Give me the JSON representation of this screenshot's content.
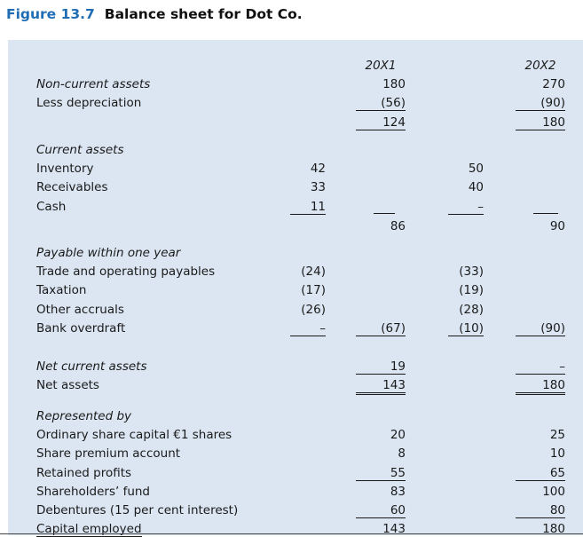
{
  "figure": {
    "number": "Figure 13.7",
    "caption": "Balance sheet for Dot Co."
  },
  "columns": {
    "year1": "20X1",
    "year2": "20X2"
  },
  "rows": {
    "non_current_assets": {
      "label": "Non-current assets",
      "y1": "180",
      "y2": "270"
    },
    "less_depreciation": {
      "label": "Less depreciation",
      "y1": "(56)",
      "y2": "(90)"
    },
    "nca_net": {
      "y1": "124",
      "y2": "180"
    },
    "current_assets": {
      "label": "Current assets"
    },
    "inventory": {
      "label": "Inventory",
      "s1": "42",
      "s2": "50"
    },
    "receivables": {
      "label": "Receivables",
      "s1": "33",
      "s2": "40"
    },
    "cash": {
      "label": "Cash",
      "s1": "11",
      "s2": "–"
    },
    "ca_total": {
      "y1": "86",
      "y2": "90"
    },
    "payable": {
      "label": "Payable within one year"
    },
    "trade": {
      "label": "Trade and operating payables",
      "s1": "(24)",
      "s2": "(33)"
    },
    "taxation": {
      "label": "Taxation",
      "s1": "(17)",
      "s2": "(19)"
    },
    "other_accruals": {
      "label": "Other accruals",
      "s1": "(26)",
      "s2": "(28)"
    },
    "bank_overdraft": {
      "label": "Bank overdraft",
      "s1": "–",
      "y1": "(67)",
      "s2": "(10)",
      "y2": "(90)"
    },
    "net_current_assets": {
      "label": "Net current assets",
      "y1": "19",
      "y2": "–"
    },
    "net_assets": {
      "label": "Net assets",
      "y1": "143",
      "y2": "180"
    },
    "represented_by": {
      "label": "Represented by"
    },
    "ordinary_share": {
      "label": "Ordinary share capital €1 shares",
      "y1": "20",
      "y2": "25"
    },
    "share_premium": {
      "label": "Share premium account",
      "y1": "8",
      "y2": "10"
    },
    "retained": {
      "label": "Retained profits",
      "y1": "55",
      "y2": "65"
    },
    "shareholders_fund": {
      "label": "Shareholders’ fund",
      "y1": "83",
      "y2": "100"
    },
    "debentures": {
      "label": "Debentures (15 per cent interest)",
      "y1": "60",
      "y2": "80"
    },
    "capital_employed": {
      "label": "Capital employed",
      "y1": "143",
      "y2": "180"
    }
  }
}
